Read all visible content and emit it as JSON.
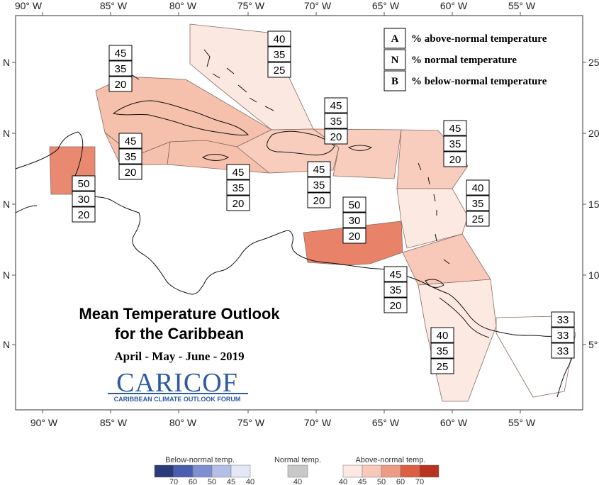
{
  "map": {
    "title_line1": "Mean Temperature Outlook",
    "title_line2": "for the Caribbean",
    "period": "April - May - June - 2019",
    "logo": {
      "name": "CariCOF",
      "text": "CARICOF",
      "subtitle": "CARIBBEAN CLIMATE OUTLOOK FORUM"
    },
    "x_ticks": [
      "90° W",
      "85° W",
      "80° W",
      "75° W",
      "70° W",
      "65° W",
      "60° W",
      "55° W"
    ],
    "y_ticks_left": [
      "N",
      "N",
      "N",
      "N",
      "N"
    ],
    "y_ticks_right": [
      "25°",
      "20°",
      "15°",
      "10°",
      "5°"
    ],
    "legend": [
      {
        "key": "A",
        "text": "% above-normal temperature"
      },
      {
        "key": "N",
        "text": "% normal temperature"
      },
      {
        "key": "B",
        "text": "% below-normal temperature"
      }
    ],
    "regions": [
      {
        "id": "bahamas",
        "values": [
          "40",
          "35",
          "25"
        ],
        "color": "#fbe8e0"
      },
      {
        "id": "cuba",
        "values": [
          "45",
          "35",
          "20"
        ],
        "color": "#f5c0ac"
      },
      {
        "id": "cayman",
        "values": [
          "45",
          "35",
          "20"
        ],
        "color": "#f5c0ac"
      },
      {
        "id": "jamaica",
        "values": [
          "45",
          "35",
          "20"
        ],
        "color": "#f5c0ac"
      },
      {
        "id": "belize",
        "values": [
          "50",
          "30",
          "20"
        ],
        "color": "#e98a70"
      },
      {
        "id": "hispaniola",
        "values": [
          "45",
          "35",
          "20"
        ],
        "color": "#f8cdbd"
      },
      {
        "id": "puerto-rico",
        "values": [
          "45",
          "35",
          "20"
        ],
        "color": "#f8cdbd"
      },
      {
        "id": "leewards",
        "values": [
          "45",
          "35",
          "20"
        ],
        "color": "#f8cdbd"
      },
      {
        "id": "windwards",
        "values": [
          "40",
          "35",
          "25"
        ],
        "color": "#fce9e2"
      },
      {
        "id": "abc-venezuela",
        "values": [
          "50",
          "30",
          "20"
        ],
        "color": "#e8836a"
      },
      {
        "id": "trinidad",
        "values": [
          "45",
          "35",
          "20"
        ],
        "color": "#f8c9b8"
      },
      {
        "id": "guyana",
        "values": [
          "40",
          "35",
          "25"
        ],
        "color": "#fce9e2"
      },
      {
        "id": "suriname",
        "values": [
          "33",
          "33",
          "33"
        ],
        "color": "#ffffff"
      }
    ],
    "scale": {
      "below": {
        "label": "Below-normal temp.",
        "ticks": [
          "70",
          "60",
          "50",
          "45",
          "40"
        ],
        "colors": [
          "#2b3a7a",
          "#4a5eb0",
          "#7f8fd0",
          "#b4bfe6",
          "#e4e8f6"
        ]
      },
      "normal": {
        "label": "Normal temp.",
        "ticks": [
          "40"
        ],
        "color": "#c8c8c8"
      },
      "above": {
        "label": "Above-normal temp.",
        "ticks": [
          "40",
          "45",
          "50",
          "60",
          "70"
        ],
        "colors": [
          "#fce9e2",
          "#f8c9b8",
          "#ed9c84",
          "#dc5e43",
          "#b7341f"
        ]
      }
    }
  }
}
